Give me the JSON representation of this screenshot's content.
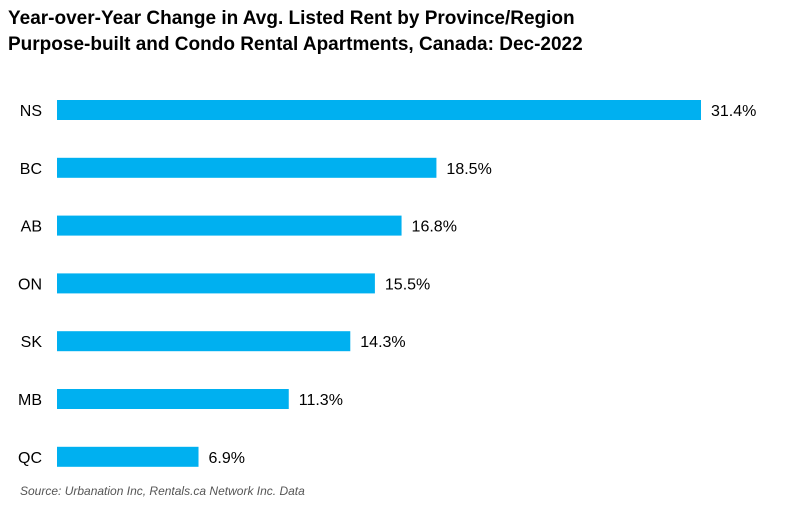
{
  "chart_data": {
    "type": "bar",
    "orientation": "horizontal",
    "title": "Year-over-Year Change in Avg. Listed Rent by Province/Region",
    "subtitle": "Purpose-built and Condo Rental Apartments, Canada: Dec-2022",
    "categories": [
      "NS",
      "BC",
      "AB",
      "ON",
      "SK",
      "MB",
      "QC"
    ],
    "values": [
      31.4,
      18.5,
      16.8,
      15.5,
      14.3,
      11.3,
      6.9
    ],
    "value_labels": [
      "31.4%",
      "18.5%",
      "16.8%",
      "15.5%",
      "14.3%",
      "11.3%",
      "6.9%"
    ],
    "xlabel": "",
    "ylabel": "",
    "xlim": [
      0,
      31.4
    ],
    "grid": false,
    "legend": "none",
    "bar_color": "#00B0F0"
  },
  "source": "Source: Urbanation Inc, Rentals.ca Network Inc. Data"
}
